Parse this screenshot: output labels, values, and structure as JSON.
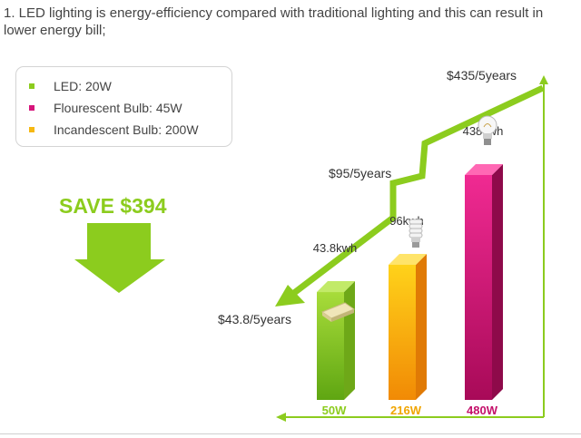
{
  "intro": {
    "text": "1. LED lighting is energy-efficiency compared with traditional lighting and this can result in lower energy bill;"
  },
  "legend": [
    {
      "label": "LED: 20W",
      "color": "#8ccc1e"
    },
    {
      "label": "Flourescent Bulb: 45W",
      "color": "#d6157b"
    },
    {
      "label": "Incandescent Bulb: 200W",
      "color": "#f6b812"
    }
  ],
  "save": {
    "label": "SAVE $394",
    "color": "#8ccc1e"
  },
  "icons": {
    "led": "led-chip-icon",
    "fluorescent": "cfl-bulb-icon",
    "incandescent": "light-bulb-icon"
  },
  "chart_data": {
    "type": "bar",
    "categories": [
      "50W",
      "216W",
      "480W"
    ],
    "values": [
      43.8,
      96,
      438
    ],
    "value_labels": [
      "43.8kwh",
      "96kwh",
      "438kwh"
    ],
    "cost_labels": [
      "$43.8/5years",
      "$95/5years",
      "$435/5years"
    ],
    "colors": [
      "#8ccc1e",
      "#f6b812",
      "#d6157b"
    ],
    "category_colors": [
      "#8ccc1e",
      "#f0a500",
      "#c4106a"
    ],
    "axis_color": "#8ccc1e"
  }
}
